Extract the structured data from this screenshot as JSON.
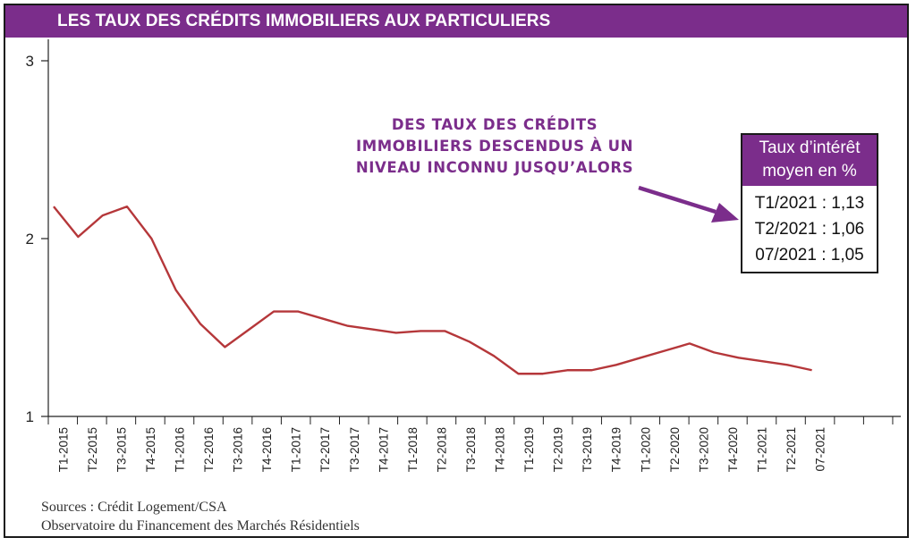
{
  "title": "LES TAUX DES CRÉDITS IMMOBILIERS AUX PARTICULIERS",
  "annotation": {
    "lines": [
      "DES TAUX DES CRÉDITS",
      "IMMOBILIERS DESCENDUS À UN",
      "NIVEAU INCONNU JUSQU’ALORS"
    ]
  },
  "rate_box": {
    "header_lines": [
      "Taux d’intérêt",
      "moyen en %"
    ],
    "rows": [
      "T1/2021 : 1,13",
      "T2/2021 : 1,06",
      "07/2021 : 1,05"
    ]
  },
  "sources": {
    "line1": "Sources : Crédit Logement/CSA",
    "line2": "Observatoire du Financement des Marchés Résidentiels"
  },
  "colors": {
    "accent": "#7b2d8b",
    "line": "#b5373a",
    "axis": "#222222"
  },
  "chart_data": {
    "type": "line",
    "categories": [
      "T1-2015",
      "T2-2015",
      "T3-2015",
      "T4-2015",
      "T1-2016",
      "T2-2016",
      "T3-2016",
      "T4-2016",
      "T1-2017",
      "T2-2017",
      "T3-2017",
      "T4-2017",
      "T1-2018",
      "T2-2018",
      "T3-2018",
      "T4-2018",
      "T1-2019",
      "T2-2019",
      "T3-2019",
      "T4-2019",
      "T1-2020",
      "T2-2020",
      "T3-2020",
      "T4-2020",
      "T1-2021",
      "T2-2021",
      "07-2021"
    ],
    "series": [
      {
        "points": [
          {
            "x": "T1-2015",
            "y": 2.18
          },
          {
            "x": "",
            "y": 2.01
          },
          {
            "x": "T2-2015",
            "y": 2.13
          },
          {
            "x": "",
            "y": 2.18
          },
          {
            "x": "T3-2015",
            "y": 2.0
          },
          {
            "x": "",
            "y": 1.71
          },
          {
            "x": "T4-2015",
            "y": 1.52
          },
          {
            "x": "",
            "y": 1.39
          },
          {
            "x": "T1-2016",
            "y": 1.49
          },
          {
            "x": "",
            "y": 1.59
          },
          {
            "x": "T2-2016",
            "y": 1.59
          },
          {
            "x": "",
            "y": 1.55
          },
          {
            "x": "T3-2016",
            "y": 1.51
          },
          {
            "x": "",
            "y": 1.49
          },
          {
            "x": "T4-2016",
            "y": 1.47
          },
          {
            "x": "",
            "y": 1.48
          },
          {
            "x": "T1-2017",
            "y": 1.48
          },
          {
            "x": "",
            "y": 1.42
          },
          {
            "x": "T2-2017",
            "y": 1.34
          },
          {
            "x": "",
            "y": 1.24
          },
          {
            "x": "T3-2017",
            "y": 1.24
          },
          {
            "x": "",
            "y": 1.26
          },
          {
            "x": "T4-2017",
            "y": 1.26
          },
          {
            "x": "",
            "y": 1.29
          },
          {
            "x": "T1-2018",
            "y": 1.33
          },
          {
            "x": "",
            "y": 1.37
          },
          {
            "x": "T2-2018",
            "y": 1.41
          },
          {
            "x": "",
            "y": 1.36
          },
          {
            "x": "T3-2018",
            "y": 1.33
          },
          {
            "x": "",
            "y": 1.31
          },
          {
            "x": "T4-2018",
            "y": 1.29
          },
          {
            "x": "",
            "y": 1.26
          }
        ]
      }
    ],
    "y_ticks": [
      1,
      2,
      3
    ],
    "ylim": [
      1,
      3.1
    ],
    "grid": false
  }
}
